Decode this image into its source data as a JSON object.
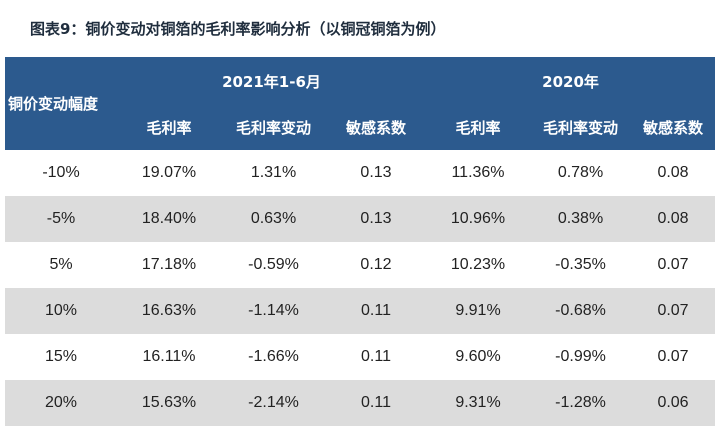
{
  "title": "图表9：铜价变动对铜箔的毛利率影响分析（以铜冠铜箔为例）",
  "header": {
    "row_label": "铜价变动幅度",
    "group1": "2021年1-6月",
    "group2": "2020年",
    "sub": [
      "毛利率",
      "毛利率变动",
      "敏感系数",
      "毛利率",
      "毛利率变动",
      "敏感系数"
    ]
  },
  "rows": [
    [
      "-10%",
      "19.07%",
      "1.31%",
      "0.13",
      "11.36%",
      "0.78%",
      "0.08"
    ],
    [
      "-5%",
      "18.40%",
      "0.63%",
      "0.13",
      "10.96%",
      "0.38%",
      "0.08"
    ],
    [
      "5%",
      "17.18%",
      "-0.59%",
      "0.12",
      "10.23%",
      "-0.35%",
      "0.07"
    ],
    [
      "10%",
      "16.63%",
      "-1.14%",
      "0.11",
      "9.91%",
      "-0.68%",
      "0.07"
    ],
    [
      "15%",
      "16.11%",
      "-1.66%",
      "0.11",
      "9.60%",
      "-0.99%",
      "0.07"
    ],
    [
      "20%",
      "15.63%",
      "-2.14%",
      "0.11",
      "9.31%",
      "-1.28%",
      "0.06"
    ]
  ],
  "colors": {
    "header_bg": "#2c5a8e",
    "stripe": "#dcdcdc"
  }
}
